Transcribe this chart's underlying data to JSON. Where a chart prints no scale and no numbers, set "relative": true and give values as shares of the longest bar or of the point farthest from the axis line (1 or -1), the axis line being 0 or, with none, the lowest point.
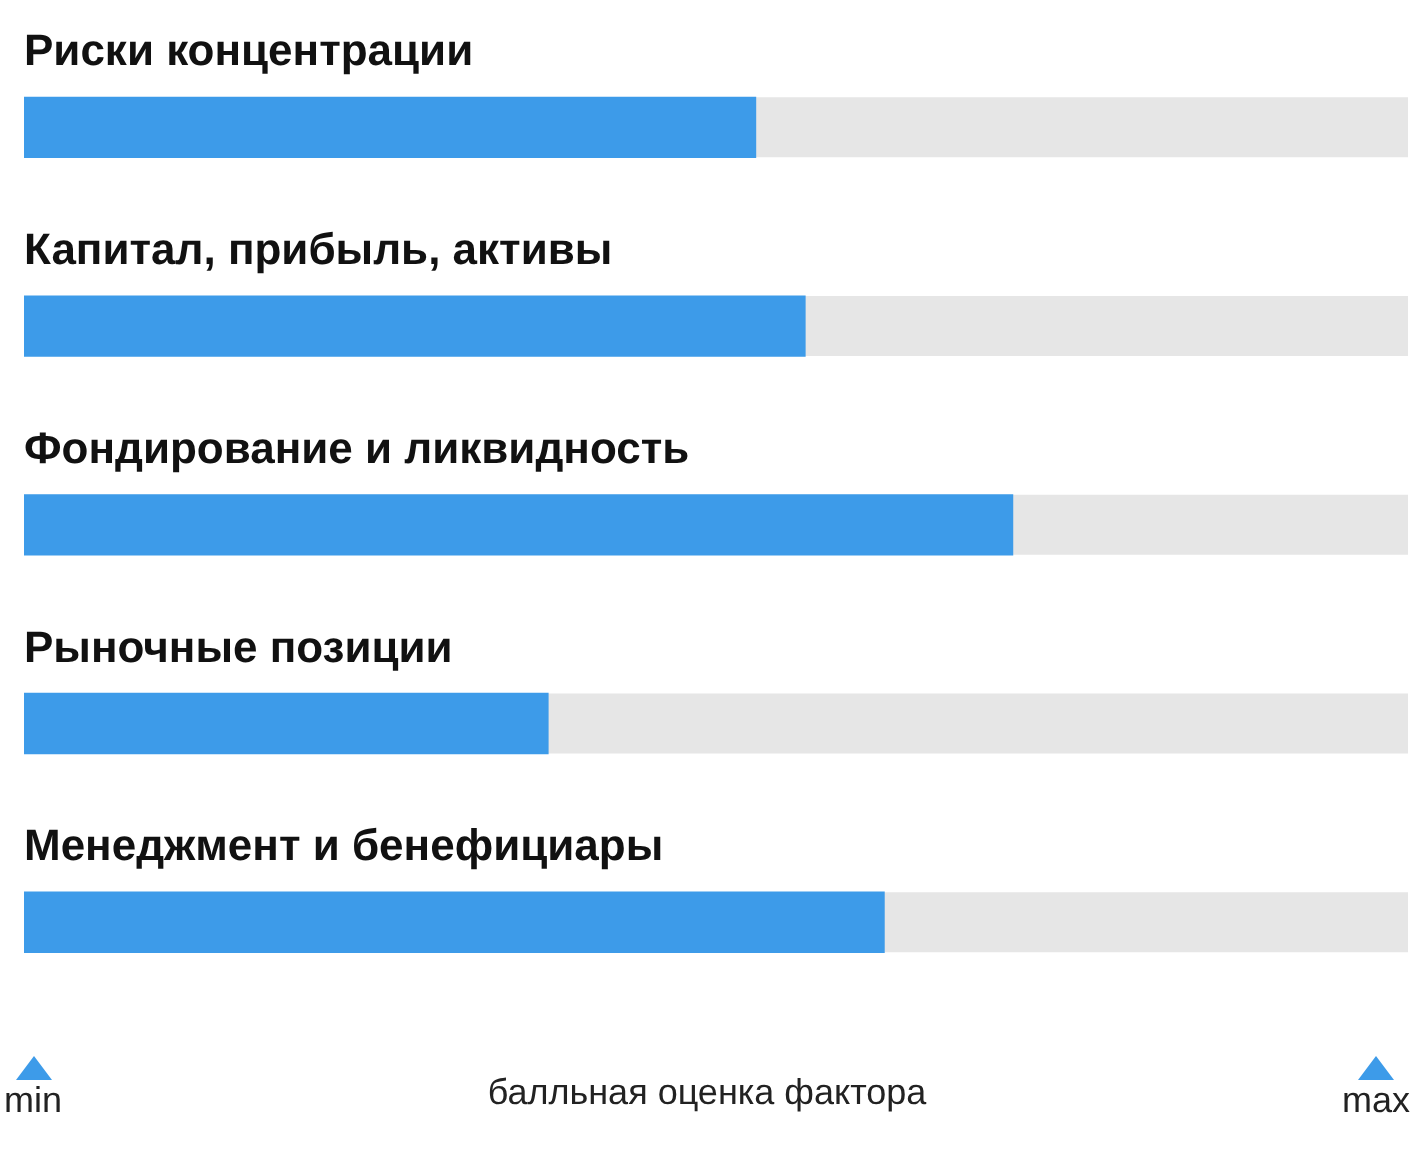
{
  "chart_data": {
    "type": "bar",
    "orientation": "horizontal",
    "relative": true,
    "xlabel": "балльная оценка фактора",
    "categories": [
      "Риски концентрации",
      "Капитал, прибыль, активы",
      "Фондирование и ликвидность",
      "Рыночные позиции",
      "Менеджмент и бенефициары"
    ],
    "values": [
      0.74,
      0.79,
      1,
      0.53,
      0.87
    ],
    "color": "#3d9be9",
    "annotations": [
      "min",
      "max"
    ],
    "grid": false,
    "legend": false
  }
}
